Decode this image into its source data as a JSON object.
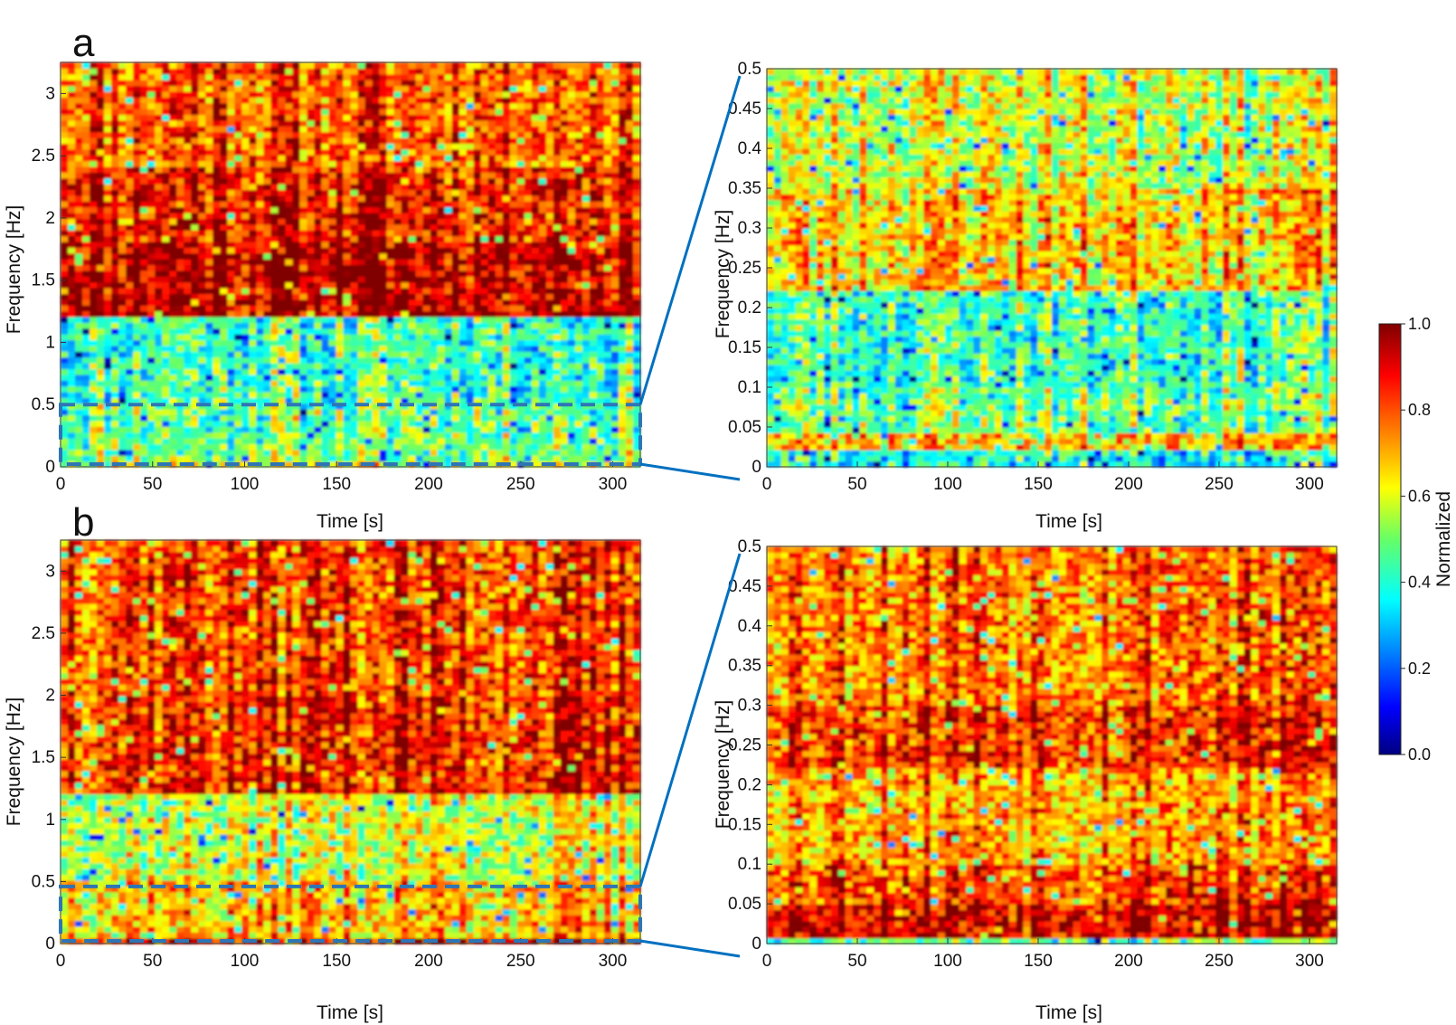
{
  "panels": [
    {
      "label": "a",
      "xlabel": "Time [s]",
      "ylabel": "Frequency [Hz]"
    },
    {
      "label": "b",
      "xlabel": "Time [s]",
      "ylabel": "Frequency [Hz]"
    }
  ],
  "colorbar": {
    "label": "Normalized",
    "ticks": [
      "1.0",
      "0.8",
      "0.6",
      "0.4",
      "0.2",
      "0.0"
    ]
  },
  "colors": {
    "zoom_line": "#0070c0",
    "dashed_box": "#2e75b6"
  },
  "chart_data": [
    {
      "type": "heatmap",
      "panel": "a",
      "view": "full",
      "xlabel": "Time [s]",
      "ylabel": "Frequency [Hz]",
      "xlim": [
        0,
        315
      ],
      "ylim": [
        0,
        3.25
      ],
      "xticks": [
        0,
        50,
        100,
        150,
        200,
        250,
        300
      ],
      "yticks": [
        0,
        0.5,
        1,
        1.5,
        2,
        2.5,
        3
      ],
      "highlight_box": {
        "x": [
          0,
          315
        ],
        "y": [
          0,
          0.5
        ]
      },
      "bands": [
        {
          "f_range": [
            0,
            0.03
          ],
          "intensity": 0.6
        },
        {
          "f_range": [
            0.03,
            0.5
          ],
          "intensity": 0.5
        },
        {
          "f_range": [
            0.5,
            1.2
          ],
          "intensity": 0.45
        },
        {
          "f_range": [
            1.2,
            1.8
          ],
          "intensity": 0.97
        },
        {
          "f_range": [
            1.8,
            2.4
          ],
          "intensity": 0.9
        },
        {
          "f_range": [
            2.4,
            3.25
          ],
          "intensity": 0.82
        }
      ]
    },
    {
      "type": "heatmap",
      "panel": "a",
      "view": "zoom",
      "xlabel": "Time [s]",
      "ylabel": "Frequency [Hz]",
      "xlim": [
        0,
        315
      ],
      "ylim": [
        0,
        0.5
      ],
      "xticks": [
        0,
        50,
        100,
        150,
        200,
        250,
        300
      ],
      "yticks": [
        0,
        0.05,
        0.1,
        0.15,
        0.2,
        0.25,
        0.3,
        0.35,
        0.4,
        0.45,
        0.5
      ],
      "bands": [
        {
          "f_range": [
            0,
            0.02
          ],
          "intensity": 0.4
        },
        {
          "f_range": [
            0.02,
            0.04
          ],
          "intensity": 0.7
        },
        {
          "f_range": [
            0.04,
            0.1
          ],
          "intensity": 0.5
        },
        {
          "f_range": [
            0.1,
            0.22
          ],
          "intensity": 0.45
        },
        {
          "f_range": [
            0.22,
            0.35
          ],
          "intensity": 0.7
        },
        {
          "f_range": [
            0.35,
            0.5
          ],
          "intensity": 0.6
        }
      ]
    },
    {
      "type": "heatmap",
      "panel": "b",
      "view": "full",
      "xlabel": "Time [s]",
      "ylabel": "Frequency [Hz]",
      "xlim": [
        0,
        315
      ],
      "ylim": [
        0,
        3.25
      ],
      "xticks": [
        0,
        50,
        100,
        150,
        200,
        250,
        300
      ],
      "yticks": [
        0,
        0.5,
        1,
        1.5,
        2,
        2.5,
        3
      ],
      "highlight_box": {
        "x": [
          0,
          315
        ],
        "y": [
          0,
          0.46
        ]
      },
      "bands": [
        {
          "f_range": [
            0,
            0.05
          ],
          "intensity": 0.9
        },
        {
          "f_range": [
            0.05,
            0.5
          ],
          "intensity": 0.7
        },
        {
          "f_range": [
            0.5,
            1.2
          ],
          "intensity": 0.6
        },
        {
          "f_range": [
            1.2,
            2.0
          ],
          "intensity": 0.88
        },
        {
          "f_range": [
            2.0,
            3.25
          ],
          "intensity": 0.85
        }
      ]
    },
    {
      "type": "heatmap",
      "panel": "b",
      "view": "zoom",
      "xlabel": "Time [s]",
      "ylabel": "Frequency [Hz]",
      "xlim": [
        0,
        315
      ],
      "ylim": [
        0,
        0.5
      ],
      "xticks": [
        0,
        50,
        100,
        150,
        200,
        250,
        300
      ],
      "yticks": [
        0,
        0.05,
        0.1,
        0.15,
        0.2,
        0.25,
        0.3,
        0.35,
        0.4,
        0.45,
        0.5
      ],
      "bands": [
        {
          "f_range": [
            0,
            0.01
          ],
          "intensity": 0.5
        },
        {
          "f_range": [
            0.01,
            0.05
          ],
          "intensity": 0.95
        },
        {
          "f_range": [
            0.05,
            0.1
          ],
          "intensity": 0.85
        },
        {
          "f_range": [
            0.1,
            0.22
          ],
          "intensity": 0.75
        },
        {
          "f_range": [
            0.22,
            0.3
          ],
          "intensity": 0.88
        },
        {
          "f_range": [
            0.3,
            0.5
          ],
          "intensity": 0.8
        }
      ]
    }
  ]
}
